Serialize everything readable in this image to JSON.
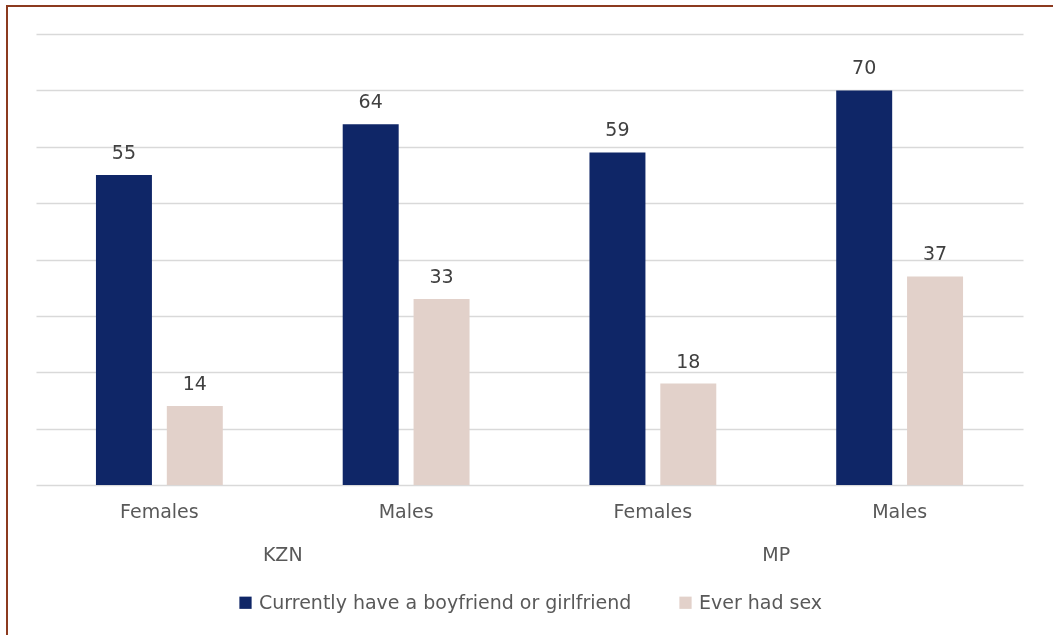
{
  "chart_data": {
    "type": "bar",
    "categories": [
      "Females",
      "Males",
      "Females",
      "Males"
    ],
    "series": [
      {
        "name": "Currently have a boyfriend or girlfriend",
        "color": "#0f2667",
        "values": [
          55,
          64,
          59,
          70
        ]
      },
      {
        "name": "Ever had sex",
        "color": "#e2d1ca",
        "values": [
          14,
          33,
          18,
          37
        ]
      }
    ],
    "annotations": [
      "KZN",
      "MP"
    ],
    "ylim": [
      0,
      80
    ],
    "yticks": [
      {
        "value": 0,
        "label": null
      },
      {
        "value": 10,
        "label": null
      },
      {
        "value": 20,
        "label": null
      },
      {
        "value": 30,
        "label": null
      },
      {
        "value": 40,
        "label": null
      },
      {
        "value": 50,
        "label": null
      },
      {
        "value": 60,
        "label": null
      },
      {
        "value": 70,
        "label": null
      },
      {
        "value": 80,
        "label": null
      }
    ],
    "grid": "y",
    "tick_labels": "x",
    "data_labels": true,
    "legend": "bottom"
  }
}
